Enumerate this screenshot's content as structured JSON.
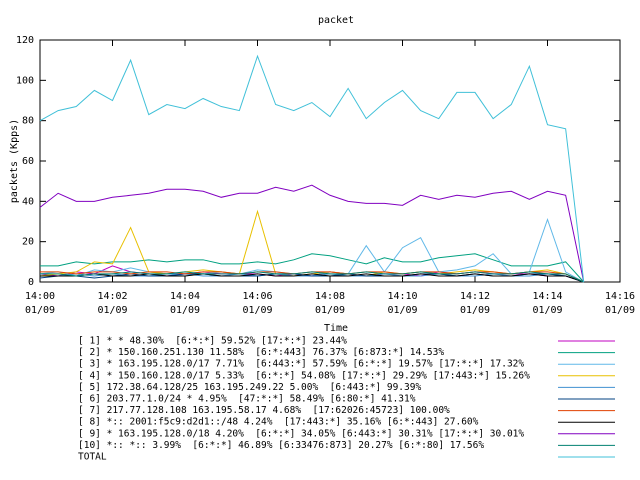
{
  "chart_data": {
    "type": "line",
    "title": "packet",
    "x_label": "Time",
    "y_label": "packets (Kpps)",
    "xlim": [
      "14:00:00",
      "14:16:00"
    ],
    "xticks": [
      {
        "value": "14:00:00",
        "label": [
          "14:00",
          "01/09"
        ]
      },
      {
        "value": "14:02:00",
        "label": [
          "14:02",
          "01/09"
        ]
      },
      {
        "value": "14:04:00",
        "label": [
          "14:04",
          "01/09"
        ]
      },
      {
        "value": "14:06:00",
        "label": [
          "14:06",
          "01/09"
        ]
      },
      {
        "value": "14:08:00",
        "label": [
          "14:08",
          "01/09"
        ]
      },
      {
        "value": "14:10:00",
        "label": [
          "14:10",
          "01/09"
        ]
      },
      {
        "value": "14:12:00",
        "label": [
          "14:12",
          "01/09"
        ]
      },
      {
        "value": "14:14:00",
        "label": [
          "14:14",
          "01/09"
        ]
      },
      {
        "value": "14:16:00",
        "label": [
          "14:16",
          "01/09"
        ]
      }
    ],
    "ylim": [
      0,
      120
    ],
    "yticks": [
      0,
      20,
      40,
      60,
      80,
      100,
      120
    ],
    "x": [
      "14:00:00",
      "14:00:30",
      "14:01:00",
      "14:01:30",
      "14:02:00",
      "14:02:30",
      "14:03:00",
      "14:03:30",
      "14:04:00",
      "14:04:30",
      "14:05:00",
      "14:05:30",
      "14:06:00",
      "14:06:30",
      "14:07:00",
      "14:07:30",
      "14:08:00",
      "14:08:30",
      "14:09:00",
      "14:09:30",
      "14:10:00",
      "14:10:30",
      "14:11:00",
      "14:11:30",
      "14:12:00",
      "14:12:30",
      "14:13:00",
      "14:13:30",
      "14:14:00",
      "14:14:30",
      "14:15:00"
    ],
    "series": [
      {
        "name": "[ 1] * * 48.30%  [6:*:*] 59.52% [17:*:*] 23.44%",
        "color": "#c000c0",
        "values": [
          4,
          3,
          5,
          4,
          8,
          5,
          4,
          3,
          4,
          5,
          4,
          4,
          4,
          3,
          4,
          3,
          5,
          4,
          3,
          4,
          4,
          3,
          5,
          4,
          5,
          4,
          4,
          4,
          3,
          3,
          0
        ]
      },
      {
        "name": "[ 2] * 150.160.251.130 11.58%  [6:*:443] 76.37% [6:873:*] 14.53%",
        "color": "#00a080",
        "values": [
          8,
          8,
          10,
          9,
          10,
          10,
          11,
          10,
          11,
          11,
          9,
          9,
          10,
          9,
          11,
          14,
          13,
          11,
          9,
          12,
          10,
          10,
          12,
          13,
          14,
          11,
          8,
          8,
          8,
          10,
          0
        ]
      },
      {
        "name": "[ 3] * 163.195.128.0/17 7.71%  [6:443:*] 57.59% [6:*:*] 19.57% [17:*:*] 17.32%",
        "color": "#60b8e8",
        "values": [
          4,
          5,
          3,
          6,
          5,
          7,
          5,
          4,
          3,
          4,
          5,
          4,
          6,
          5,
          4,
          3,
          5,
          4,
          18,
          5,
          17,
          22,
          5,
          6,
          8,
          14,
          4,
          5,
          31,
          5,
          0
        ]
      },
      {
        "name": "[ 4] * 150.160.128.0/17 5.33%  [6:*:*] 54.08% [17:*:*] 29.29% [17:443:*] 15.26%",
        "color": "#e8c000",
        "values": [
          3,
          4,
          5,
          10,
          9,
          27,
          5,
          4,
          5,
          6,
          5,
          4,
          35,
          4,
          3,
          4,
          5,
          4,
          3,
          5,
          4,
          5,
          4,
          5,
          6,
          5,
          4,
          5,
          6,
          4,
          0
        ]
      },
      {
        "name": "[ 5] 172.38.64.128/25 163.195.249.22 5.00%  [6:443:*] 99.39%",
        "color": "#4090d0",
        "values": [
          3,
          3,
          4,
          3,
          4,
          3,
          3,
          4,
          4,
          3,
          3,
          4,
          3,
          4,
          3,
          3,
          4,
          3,
          3,
          4,
          3,
          3,
          4,
          3,
          3,
          4,
          3,
          3,
          4,
          3,
          0
        ]
      },
      {
        "name": "[ 6] 203.77.1.0/24 * 4.95%  [47:*:*] 58.49% [6:80:*] 41.31%",
        "color": "#004080",
        "values": [
          2,
          3,
          3,
          2,
          3,
          4,
          3,
          3,
          4,
          4,
          3,
          3,
          3,
          4,
          4,
          3,
          3,
          4,
          3,
          3,
          3,
          4,
          4,
          3,
          4,
          3,
          3,
          4,
          4,
          3,
          0
        ]
      },
      {
        "name": "[ 7] 217.77.128.108 163.195.58.17 4.68%  [17:62026:45723] 100.00%",
        "color": "#e04000",
        "values": [
          5,
          5,
          4,
          5,
          5,
          4,
          5,
          5,
          4,
          5,
          5,
          4,
          5,
          5,
          4,
          5,
          5,
          4,
          5,
          5,
          4,
          5,
          5,
          4,
          5,
          5,
          4,
          5,
          5,
          4,
          0
        ]
      },
      {
        "name": "[ 8] *:: 2001:f5c9:d2d1::/48 4.24%  [17:443:*] 35.16% [6:*:443] 27.60%",
        "color": "#000000",
        "values": [
          3,
          3,
          3,
          4,
          3,
          3,
          4,
          3,
          3,
          4,
          3,
          3,
          4,
          3,
          3,
          4,
          3,
          3,
          4,
          3,
          3,
          4,
          3,
          3,
          4,
          3,
          3,
          4,
          3,
          3,
          0
        ]
      },
      {
        "name": "[ 9] * 163.195.128.0/18 4.20%  [6:*:*] 34.05% [6:443:*] 30.31% [17:*:*] 30.01%",
        "color": "#8000c0",
        "values": [
          37,
          44,
          40,
          40,
          42,
          43,
          44,
          46,
          46,
          45,
          42,
          44,
          44,
          47,
          45,
          48,
          43,
          40,
          39,
          39,
          38,
          43,
          41,
          43,
          42,
          44,
          45,
          41,
          45,
          43,
          0
        ]
      },
      {
        "name": "[10] *:: *:: 3.99%  [6:*:*] 46.89% [6:33476:873] 20.27% [6:*:80] 17.56%",
        "color": "#008070",
        "values": [
          4,
          4,
          3,
          4,
          4,
          5,
          4,
          4,
          5,
          4,
          4,
          4,
          5,
          4,
          4,
          5,
          4,
          4,
          5,
          4,
          4,
          5,
          4,
          4,
          5,
          4,
          4,
          5,
          4,
          4,
          0
        ]
      },
      {
        "name": "TOTAL",
        "color": "#40c0d8",
        "values": [
          80,
          85,
          87,
          95,
          90,
          110,
          83,
          88,
          86,
          91,
          87,
          85,
          112,
          88,
          85,
          89,
          82,
          96,
          81,
          89,
          95,
          85,
          81,
          94,
          94,
          81,
          88,
          107,
          78,
          76,
          0
        ]
      }
    ]
  }
}
